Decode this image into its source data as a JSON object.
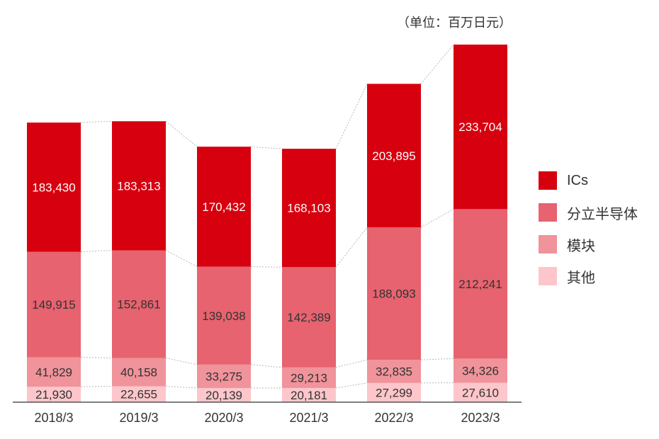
{
  "unit_label": "（单位：百万日元）",
  "chart_data": {
    "type": "bar",
    "stacked": true,
    "title": "",
    "xlabel": "",
    "ylabel": "",
    "unit": "（单位：百万日元）",
    "ylim": [
      0,
      520000
    ],
    "grid": false,
    "legend_position": "right",
    "categories": [
      "2018/3",
      "2019/3",
      "2020/3",
      "2021/3",
      "2022/3",
      "2023/3"
    ],
    "series": [
      {
        "name": "其他",
        "color": "#fcc6ca",
        "values": [
          21930,
          22655,
          20139,
          20181,
          27299,
          27610
        ]
      },
      {
        "name": "模块",
        "color": "#f0939b",
        "values": [
          41829,
          40158,
          33275,
          29213,
          32835,
          34326
        ]
      },
      {
        "name": "分立半导体",
        "color": "#e6636f",
        "values": [
          149915,
          152861,
          139038,
          142389,
          188093,
          212241
        ]
      },
      {
        "name": "ICs",
        "color": "#d7000f",
        "values": [
          183430,
          183313,
          170432,
          168103,
          203895,
          233704
        ]
      }
    ]
  },
  "legend": [
    {
      "label": "ICs",
      "color": "#d7000f"
    },
    {
      "label": "分立半导体",
      "color": "#e6636f"
    },
    {
      "label": "模块",
      "color": "#f0939b"
    },
    {
      "label": "其他",
      "color": "#fcc6ca"
    }
  ]
}
